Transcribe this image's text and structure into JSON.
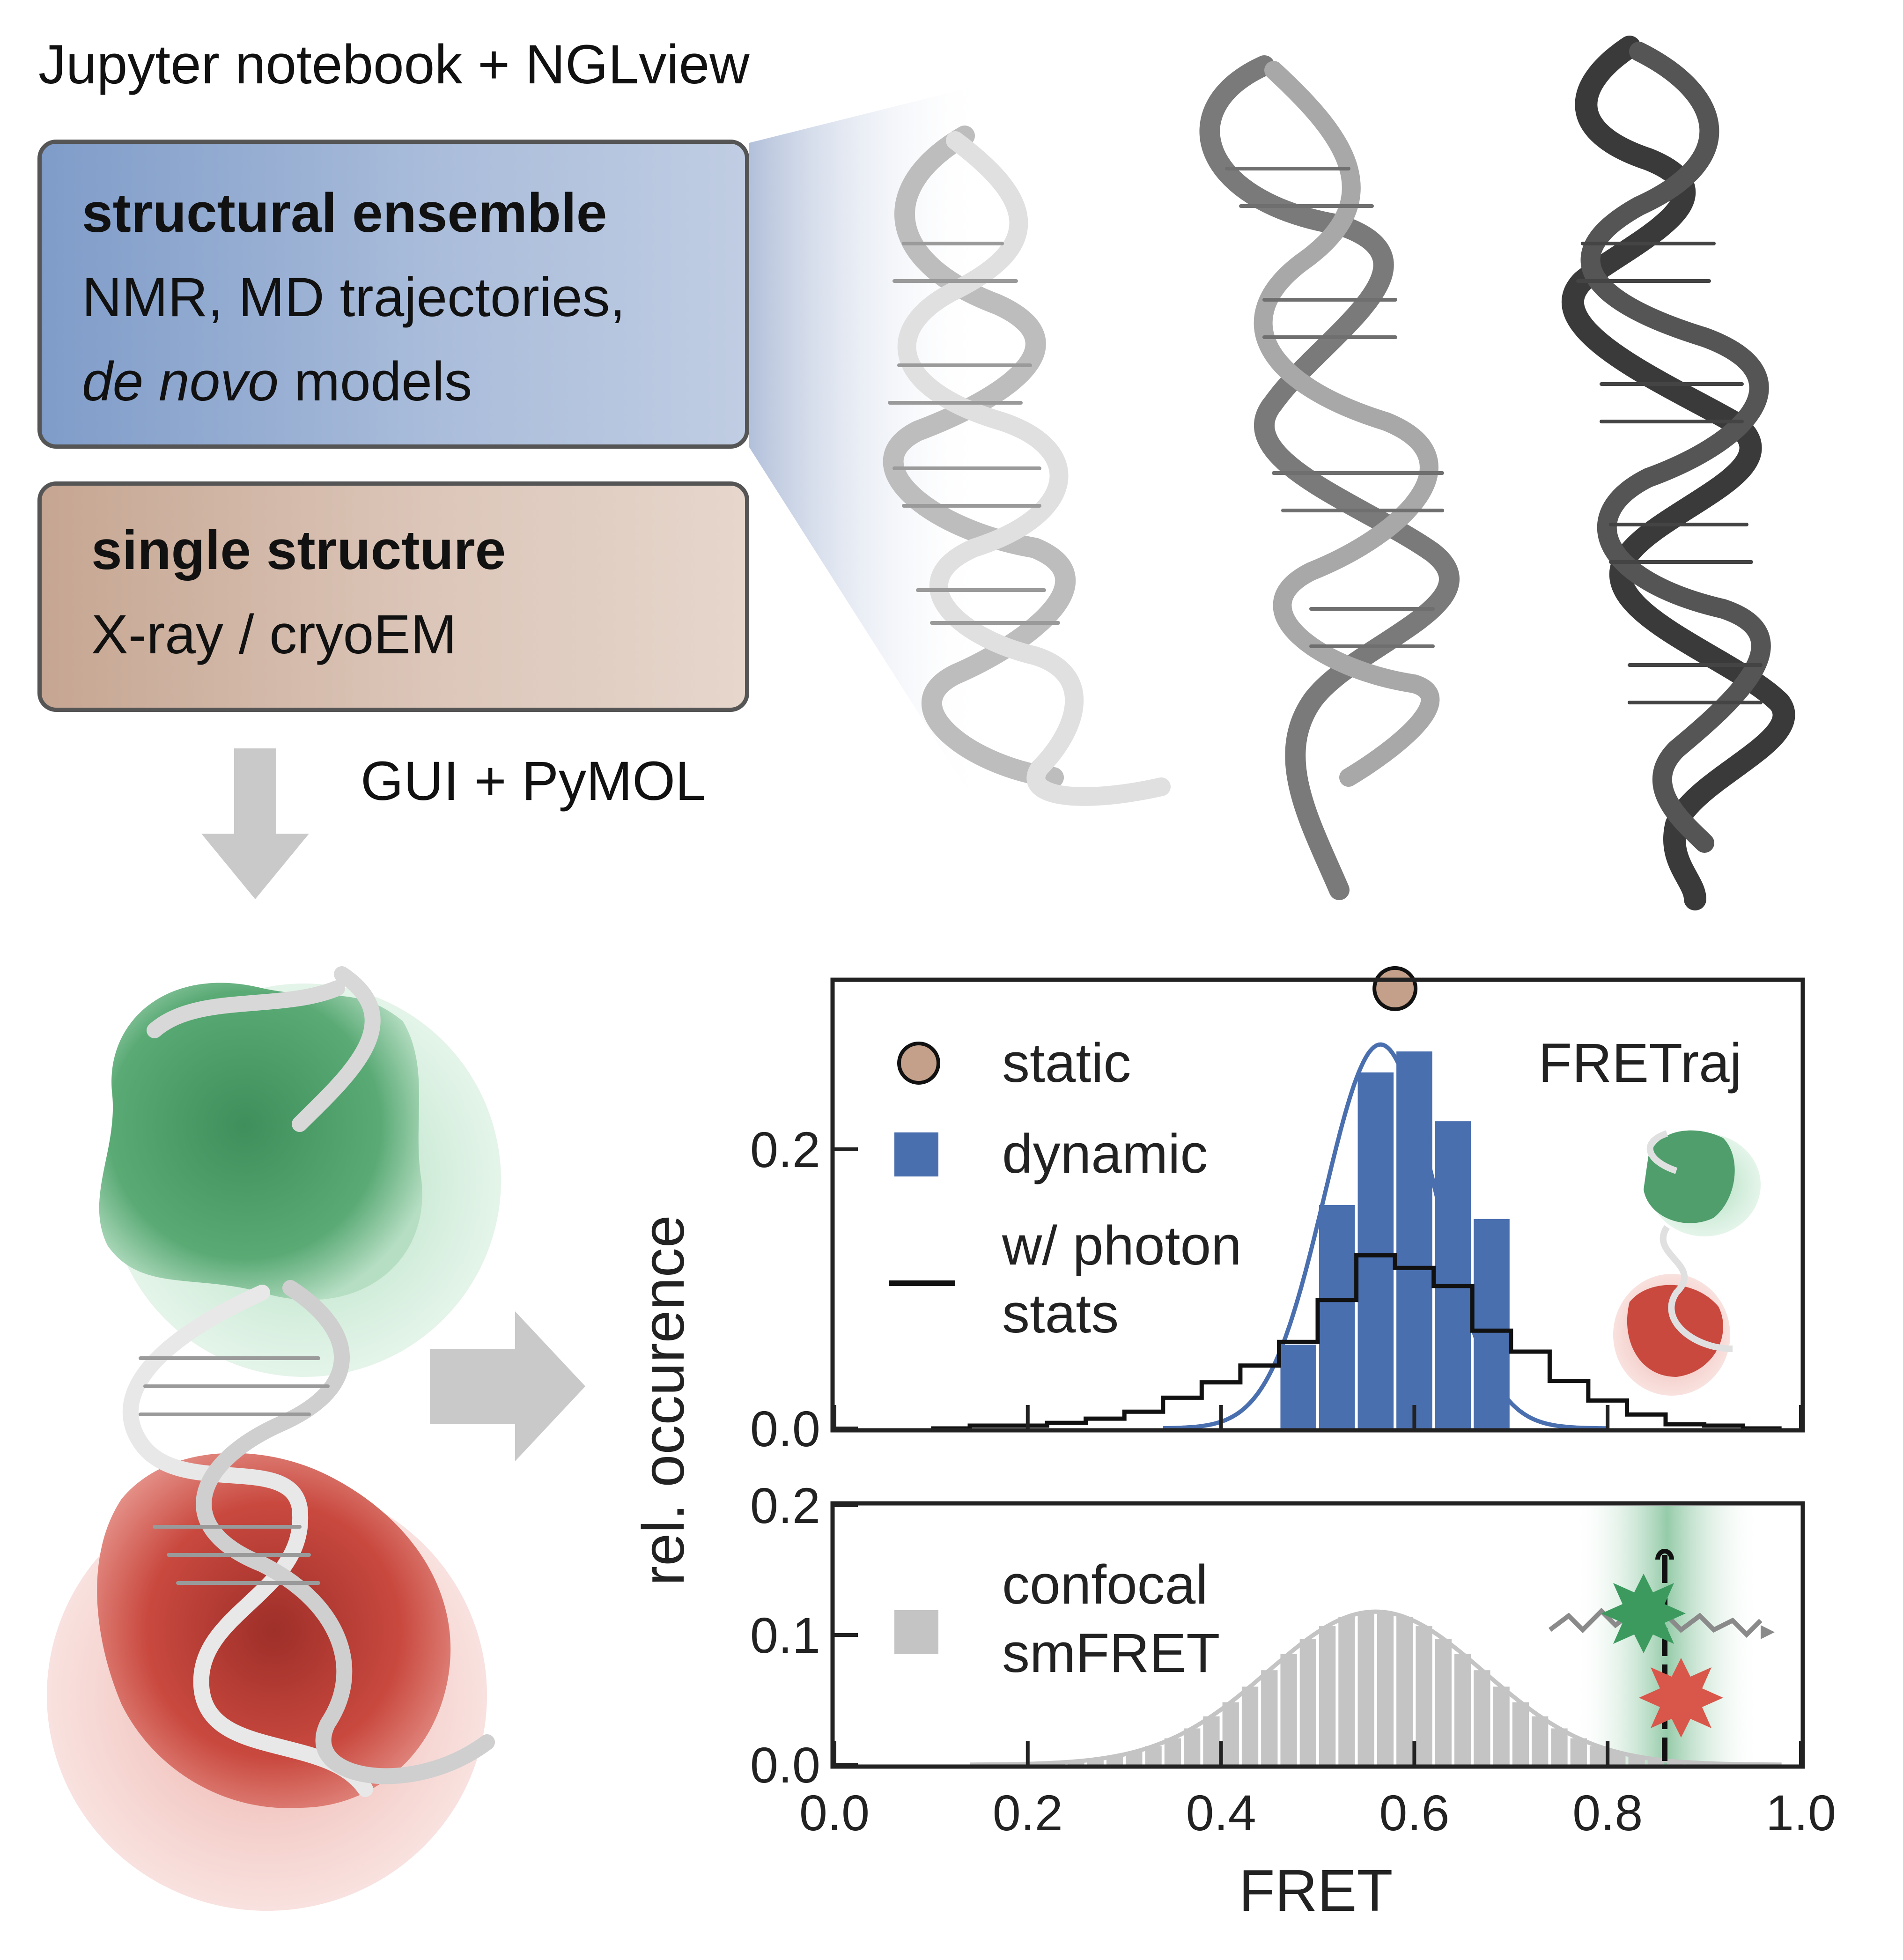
{
  "header": {
    "title": "Jupyter notebook + NGLview"
  },
  "ensemble_box": {
    "heading": "structural ensemble",
    "line1": "NMR, MD trajectories,",
    "line2_italic": "de novo",
    "line2_rest": " models"
  },
  "single_box": {
    "heading": "single structure",
    "line1": "X-ray / cryoEM"
  },
  "gui_label": "GUI + PyMOL",
  "colors": {
    "dynamic": "#4a6faf",
    "static_marker": "#c4a08a",
    "photon": "#111111",
    "confocal": "#c4c4c4",
    "donor": "#3c9a5f",
    "acceptor": "#d9564a"
  },
  "chart_data": [
    {
      "type": "bar",
      "panel": "top",
      "ylim": [
        0,
        0.32
      ],
      "xlim": [
        0,
        1
      ],
      "yticks": [
        "0.0",
        "0.2"
      ],
      "annotation": "FRETraj",
      "bin_width": 0.04,
      "legend": [
        {
          "label": "static",
          "marker": "circle"
        },
        {
          "label": "dynamic",
          "marker": "square"
        },
        {
          "label": "w/ photon",
          "label2": "stats",
          "marker": "line"
        }
      ],
      "static_point": {
        "x": 0.58,
        "y": 0.315
      },
      "dynamic_hist": {
        "x": [
          0.46,
          0.5,
          0.54,
          0.58,
          0.62,
          0.66
        ],
        "y": [
          0.06,
          0.16,
          0.255,
          0.27,
          0.22,
          0.15
        ]
      },
      "dynamic_fit": {
        "mean": 0.565,
        "sd": 0.058,
        "peak": 0.275
      },
      "photon_stats": {
        "x": [
          0.1,
          0.14,
          0.18,
          0.22,
          0.26,
          0.3,
          0.34,
          0.38,
          0.42,
          0.46,
          0.5,
          0.54,
          0.58,
          0.62,
          0.66,
          0.7,
          0.74,
          0.78,
          0.82,
          0.86,
          0.9,
          0.94
        ],
        "y": [
          0.0,
          0.002,
          0.002,
          0.004,
          0.007,
          0.012,
          0.022,
          0.033,
          0.045,
          0.062,
          0.092,
          0.124,
          0.115,
          0.102,
          0.07,
          0.055,
          0.034,
          0.02,
          0.01,
          0.003,
          0.002,
          0.0
        ]
      }
    },
    {
      "type": "bar",
      "panel": "bottom",
      "xlabel": "FRET",
      "ylabel": "rel. occurence",
      "ylim": [
        0,
        0.2
      ],
      "xlim": [
        0,
        1
      ],
      "xticks": [
        "0.0",
        "0.2",
        "0.4",
        "0.6",
        "0.8",
        "1.0"
      ],
      "yticks": [
        "0.0",
        "0.1",
        "0.2"
      ],
      "bin_width": 0.02,
      "legend": [
        {
          "label": "confocal",
          "label2": "smFRET",
          "marker": "square"
        }
      ],
      "confocal_fit": {
        "mean": 0.56,
        "sd": 0.112,
        "peak": 0.118
      }
    }
  ]
}
